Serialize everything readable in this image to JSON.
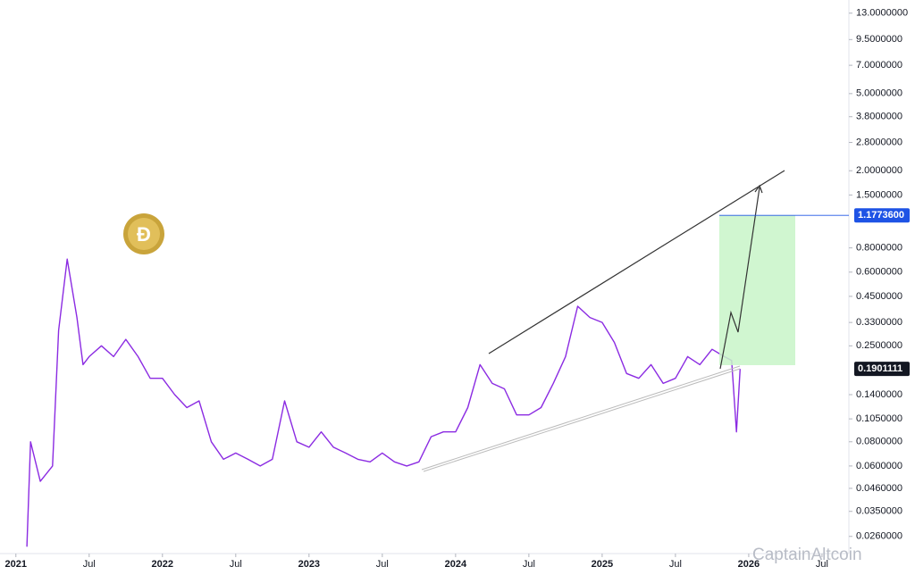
{
  "chart_data": {
    "type": "line",
    "log_scale": true,
    "color": "#8b2be2",
    "xlim": [
      -1.3,
      68.2
    ],
    "ylim": [
      0.0212,
      15.2
    ],
    "xticks": [
      {
        "value": 0,
        "label": "2021"
      },
      {
        "value": 6,
        "label": "Jul"
      },
      {
        "value": 12,
        "label": "2022"
      },
      {
        "value": 18,
        "label": "Jul"
      },
      {
        "value": 24,
        "label": "2023"
      },
      {
        "value": 30,
        "label": "Jul"
      },
      {
        "value": 36,
        "label": "2024"
      },
      {
        "value": 42,
        "label": "Jul"
      },
      {
        "value": 48,
        "label": "2025"
      },
      {
        "value": 54,
        "label": "Jul"
      },
      {
        "value": 60,
        "label": "2026"
      },
      {
        "value": 66,
        "label": "Jul"
      }
    ],
    "yticks": [
      {
        "value": 13,
        "label": "13.0000000"
      },
      {
        "value": 9.5,
        "label": "9.5000000"
      },
      {
        "value": 7,
        "label": "7.0000000"
      },
      {
        "value": 5,
        "label": "5.0000000"
      },
      {
        "value": 3.8,
        "label": "3.8000000"
      },
      {
        "value": 2.8,
        "label": "2.8000000"
      },
      {
        "value": 2,
        "label": "2.0000000"
      },
      {
        "value": 1.5,
        "label": "1.5000000"
      },
      {
        "value": 0.8,
        "label": "0.8000000"
      },
      {
        "value": 0.6,
        "label": "0.6000000"
      },
      {
        "value": 0.45,
        "label": "0.4500000"
      },
      {
        "value": 0.33,
        "label": "0.3300000"
      },
      {
        "value": 0.25,
        "label": "0.2500000"
      },
      {
        "value": 0.14,
        "label": "0.1400000"
      },
      {
        "value": 0.105,
        "label": "0.1050000"
      },
      {
        "value": 0.08,
        "label": "0.0800000"
      },
      {
        "value": 0.06,
        "label": "0.0600000"
      },
      {
        "value": 0.046,
        "label": "0.0460000"
      },
      {
        "value": 0.035,
        "label": "0.0350000"
      },
      {
        "value": 0.026,
        "label": "0.0260000"
      }
    ],
    "price_labels": [
      {
        "value": 1.17736,
        "label": "1.1773600",
        "color": "#1e53e5"
      },
      {
        "value": 0.1901111,
        "label": "0.1901111",
        "color": "#131722"
      }
    ],
    "watermark": "CaptainAltcoin",
    "logo_text": "Ð",
    "x": [
      0.9,
      1.2,
      2,
      3,
      3.5,
      4.2,
      5,
      5.5,
      6,
      7,
      8,
      9,
      10,
      11,
      12,
      13,
      14,
      15,
      16,
      17,
      18,
      19,
      20,
      21,
      22,
      23,
      24,
      25,
      26,
      27,
      28,
      29,
      30,
      31,
      32,
      33,
      34,
      35,
      36,
      37,
      38,
      39,
      40,
      41,
      42,
      43,
      44,
      45,
      46,
      47,
      48,
      49,
      50,
      51,
      52,
      53,
      54,
      55,
      56,
      57,
      58,
      58.6,
      59,
      59.3
    ],
    "values": [
      0.023,
      0.08,
      0.05,
      0.06,
      0.3,
      0.7,
      0.35,
      0.2,
      0.22,
      0.25,
      0.22,
      0.27,
      0.22,
      0.17,
      0.17,
      0.14,
      0.12,
      0.13,
      0.08,
      0.065,
      0.07,
      0.065,
      0.06,
      0.065,
      0.13,
      0.08,
      0.075,
      0.09,
      0.075,
      0.07,
      0.065,
      0.063,
      0.07,
      0.063,
      0.06,
      0.063,
      0.085,
      0.09,
      0.09,
      0.12,
      0.2,
      0.16,
      0.15,
      0.11,
      0.11,
      0.12,
      0.16,
      0.22,
      0.4,
      0.35,
      0.33,
      0.26,
      0.18,
      0.17,
      0.2,
      0.16,
      0.17,
      0.22,
      0.2,
      0.24,
      0.22,
      0.21,
      0.09,
      0.19
    ]
  }
}
